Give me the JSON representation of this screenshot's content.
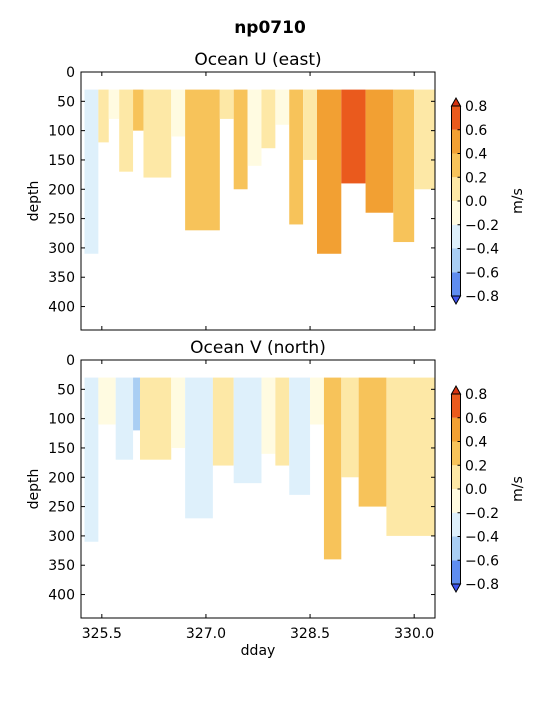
{
  "figure": {
    "suptitle": "np0710"
  },
  "colors": {
    "levels": [
      -0.8,
      -0.6,
      -0.4,
      -0.2,
      0.0,
      0.2,
      0.4,
      0.6,
      0.8
    ],
    "bands": [
      "#3e54ef",
      "#5f8df0",
      "#a9cef3",
      "#def0fb",
      "#fffbe1",
      "#fde8a6",
      "#f7c35a",
      "#f2a033",
      "#ea5a1d",
      "#d63210"
    ]
  },
  "chart_data": [
    {
      "type": "heatmap",
      "title": "Ocean U (east)",
      "xlabel": "",
      "ylabel": "depth",
      "xlim": [
        325.2,
        330.3
      ],
      "ylim": [
        440,
        0
      ],
      "xticks": [
        325.5,
        327.0,
        328.5,
        330.0
      ],
      "xticklabels": [
        "",
        "",
        "",
        ""
      ],
      "yticks": [
        0,
        50,
        100,
        150,
        200,
        250,
        300,
        350,
        400
      ],
      "yticklabels": [
        "0",
        "50",
        "100",
        "150",
        "200",
        "250",
        "300",
        "350",
        "400"
      ],
      "top_depth": 30,
      "colorbar": {
        "label": "m/s",
        "ticks": [
          "0.8",
          "0.6",
          "0.4",
          "0.2",
          "0.0",
          "−0.2",
          "−0.4",
          "−0.6",
          "−0.8"
        ]
      },
      "segments": [
        {
          "x": [
            325.25,
            325.45
          ],
          "bottom": 310,
          "level": 3
        },
        {
          "x": [
            325.45,
            325.6
          ],
          "bottom": 120,
          "level": 5
        },
        {
          "x": [
            325.6,
            325.75
          ],
          "bottom": 80,
          "level": 4
        },
        {
          "x": [
            325.75,
            325.95
          ],
          "bottom": 170,
          "level": 5
        },
        {
          "x": [
            325.95,
            326.1
          ],
          "bottom": 100,
          "level": 6
        },
        {
          "x": [
            326.1,
            326.5
          ],
          "bottom": 180,
          "level": 5
        },
        {
          "x": [
            326.5,
            326.7
          ],
          "bottom": 110,
          "level": 4
        },
        {
          "x": [
            326.7,
            327.2
          ],
          "bottom": 270,
          "level": 6
        },
        {
          "x": [
            327.2,
            327.4
          ],
          "bottom": 80,
          "level": 5
        },
        {
          "x": [
            327.4,
            327.6
          ],
          "bottom": 200,
          "level": 6
        },
        {
          "x": [
            327.6,
            327.8
          ],
          "bottom": 160,
          "level": 4
        },
        {
          "x": [
            327.8,
            328.0
          ],
          "bottom": 130,
          "level": 5
        },
        {
          "x": [
            328.0,
            328.2
          ],
          "bottom": 90,
          "level": 4
        },
        {
          "x": [
            328.2,
            328.4
          ],
          "bottom": 260,
          "level": 6
        },
        {
          "x": [
            328.4,
            328.6
          ],
          "bottom": 150,
          "level": 5
        },
        {
          "x": [
            328.6,
            328.95
          ],
          "bottom": 310,
          "level": 7
        },
        {
          "x": [
            328.95,
            329.3
          ],
          "bottom": 190,
          "level": 8
        },
        {
          "x": [
            329.3,
            329.7
          ],
          "bottom": 240,
          "level": 7
        },
        {
          "x": [
            329.7,
            330.0
          ],
          "bottom": 290,
          "level": 6
        },
        {
          "x": [
            330.0,
            330.3
          ],
          "bottom": 200,
          "level": 5
        }
      ]
    },
    {
      "type": "heatmap",
      "title": "Ocean V (north)",
      "xlabel": "dday",
      "ylabel": "depth",
      "xlim": [
        325.2,
        330.3
      ],
      "ylim": [
        440,
        0
      ],
      "xticks": [
        325.5,
        327.0,
        328.5,
        330.0
      ],
      "xticklabels": [
        "325.5",
        "327.0",
        "328.5",
        "330.0"
      ],
      "yticks": [
        0,
        50,
        100,
        150,
        200,
        250,
        300,
        350,
        400
      ],
      "yticklabels": [
        "0",
        "50",
        "100",
        "150",
        "200",
        "250",
        "300",
        "350",
        "400"
      ],
      "top_depth": 30,
      "colorbar": {
        "label": "m/s",
        "ticks": [
          "0.8",
          "0.6",
          "0.4",
          "0.2",
          "0.0",
          "−0.2",
          "−0.4",
          "−0.6",
          "−0.8"
        ]
      },
      "segments": [
        {
          "x": [
            325.25,
            325.45
          ],
          "bottom": 310,
          "level": 3
        },
        {
          "x": [
            325.45,
            325.7
          ],
          "bottom": 110,
          "level": 4
        },
        {
          "x": [
            325.7,
            325.95
          ],
          "bottom": 170,
          "level": 3
        },
        {
          "x": [
            325.95,
            326.05
          ],
          "bottom": 120,
          "level": 2
        },
        {
          "x": [
            326.05,
            326.5
          ],
          "bottom": 170,
          "level": 5
        },
        {
          "x": [
            326.5,
            326.7
          ],
          "bottom": 150,
          "level": 4
        },
        {
          "x": [
            326.7,
            327.1
          ],
          "bottom": 270,
          "level": 3
        },
        {
          "x": [
            327.1,
            327.4
          ],
          "bottom": 180,
          "level": 5
        },
        {
          "x": [
            327.4,
            327.8
          ],
          "bottom": 210,
          "level": 3
        },
        {
          "x": [
            327.8,
            328.0
          ],
          "bottom": 160,
          "level": 4
        },
        {
          "x": [
            328.0,
            328.2
          ],
          "bottom": 180,
          "level": 5
        },
        {
          "x": [
            328.2,
            328.5
          ],
          "bottom": 230,
          "level": 3
        },
        {
          "x": [
            328.5,
            328.7
          ],
          "bottom": 110,
          "level": 4
        },
        {
          "x": [
            328.7,
            328.95
          ],
          "bottom": 340,
          "level": 6
        },
        {
          "x": [
            328.95,
            329.2
          ],
          "bottom": 200,
          "level": 5
        },
        {
          "x": [
            329.2,
            329.6
          ],
          "bottom": 250,
          "level": 6
        },
        {
          "x": [
            329.6,
            330.3
          ],
          "bottom": 300,
          "level": 5
        }
      ]
    }
  ]
}
